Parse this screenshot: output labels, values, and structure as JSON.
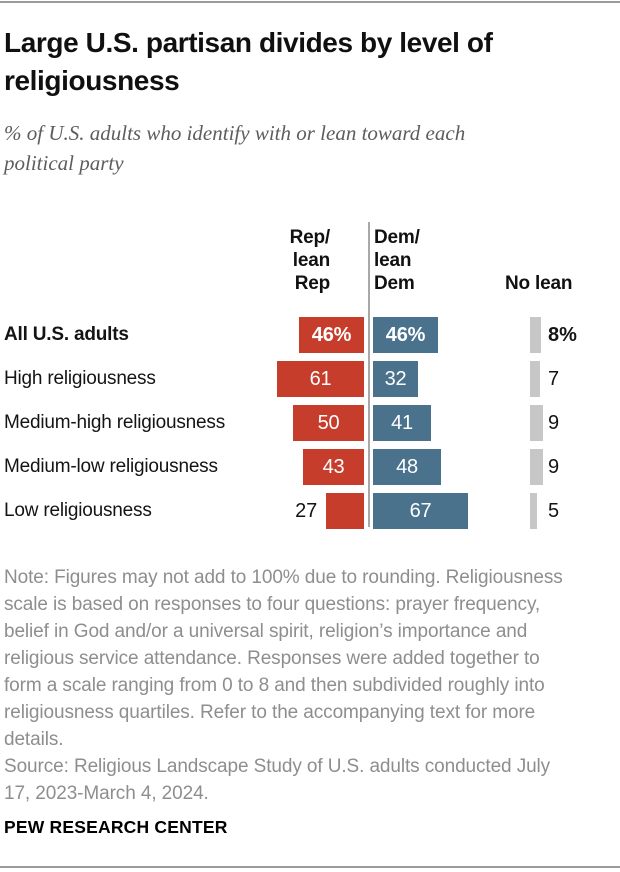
{
  "header": {
    "title": "Large U.S. partisan divides by level of\nreligiousness",
    "subtitle": "% of U.S. adults who identify with or lean toward each\npolitical party"
  },
  "chart_data": {
    "type": "bar",
    "orientation": "horizontal-diverging",
    "unit": "percent",
    "title": "Large U.S. partisan divides by level of religiousness",
    "subtitle": "% of U.S. adults who identify with or lean toward each political party",
    "column_headers": {
      "rep": "Rep/\nlean\nRep",
      "dem": "Dem/\nlean\nDem",
      "no_lean": "No lean"
    },
    "series": [
      "Rep/lean Rep",
      "Dem/lean Dem",
      "No lean"
    ],
    "categories": [
      "All U.S. adults",
      "High religiousness",
      "Medium-high religiousness",
      "Medium-low religiousness",
      "Low religiousness"
    ],
    "rows": [
      {
        "label": "All U.S. adults",
        "rep": 46,
        "dem": 46,
        "no_lean": 8,
        "rep_label": "46%",
        "dem_label": "46%",
        "no_lean_label": "8%"
      },
      {
        "label": "High religiousness",
        "rep": 61,
        "dem": 32,
        "no_lean": 7,
        "rep_label": "61",
        "dem_label": "32",
        "no_lean_label": "7"
      },
      {
        "label": "Medium-high religiousness",
        "rep": 50,
        "dem": 41,
        "no_lean": 9,
        "rep_label": "50",
        "dem_label": "41",
        "no_lean_label": "9"
      },
      {
        "label": "Medium-low religiousness",
        "rep": 43,
        "dem": 48,
        "no_lean": 9,
        "rep_label": "43",
        "dem_label": "48",
        "no_lean_label": "9"
      },
      {
        "label": "Low religiousness",
        "rep": 27,
        "dem": 67,
        "no_lean": 5,
        "rep_label": "27",
        "dem_label": "67",
        "no_lean_label": "5"
      }
    ],
    "colors": {
      "rep": "#c63d2b",
      "dem": "#4b728c",
      "no_lean": "#c7c7c7"
    },
    "axis_range": [
      0,
      100
    ],
    "grid": false,
    "legend_position": "column-headers-top"
  },
  "footer": {
    "note": "Note: Figures may not add to 100% due to rounding. Religiousness\nscale is based on responses to four questions: prayer frequency,\nbelief in God and/or a universal spirit, religion’s importance and\nreligious service attendance. Responses were added together to\nform a scale ranging from 0 to 8 and then subdivided roughly into\nreligiousness quartiles. Refer to the accompanying text for more\ndetails.",
    "source": "Source: Religious Landscape Study of U.S. adults conducted July\n17, 2023-March 4, 2024.",
    "brand": "PEW RESEARCH CENTER"
  }
}
